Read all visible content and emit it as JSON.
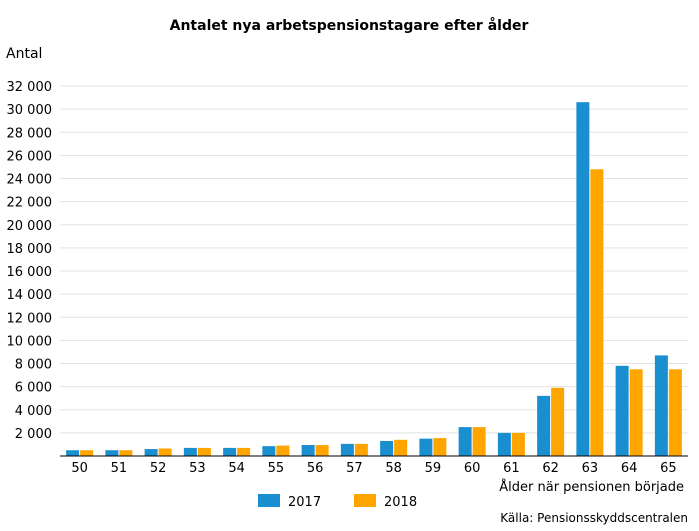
{
  "chart_data": {
    "type": "bar",
    "title": "Antalet nya arbetspensionstagare efter ålder",
    "ylabel": "Antal",
    "xlabel": "Ålder när pensionen började",
    "source": "Källa: Pensionsskyddscentralen",
    "categories": [
      "50",
      "51",
      "52",
      "53",
      "54",
      "55",
      "56",
      "57",
      "58",
      "59",
      "60",
      "61",
      "62",
      "63",
      "64",
      "65"
    ],
    "series": [
      {
        "name": "2017",
        "color": "#1a8fd0",
        "values": [
          500,
          500,
          600,
          700,
          700,
          850,
          950,
          1050,
          1300,
          1500,
          2500,
          2000,
          5200,
          30600,
          7800,
          8700
        ]
      },
      {
        "name": "2018",
        "color": "#ffa500",
        "values": [
          500,
          500,
          650,
          700,
          700,
          900,
          950,
          1050,
          1400,
          1550,
          2500,
          2000,
          5900,
          24800,
          7500,
          7500
        ]
      }
    ],
    "yticks": [
      "2 000",
      "4 000",
      "6 000",
      "8 000",
      "10 000",
      "12 000",
      "14 000",
      "16 000",
      "18 000",
      "20 000",
      "22 000",
      "24 000",
      "26 000",
      "28 000",
      "30 000",
      "32 000"
    ],
    "ylim": [
      0,
      32000
    ],
    "grid": true,
    "legend_position": "bottom"
  }
}
